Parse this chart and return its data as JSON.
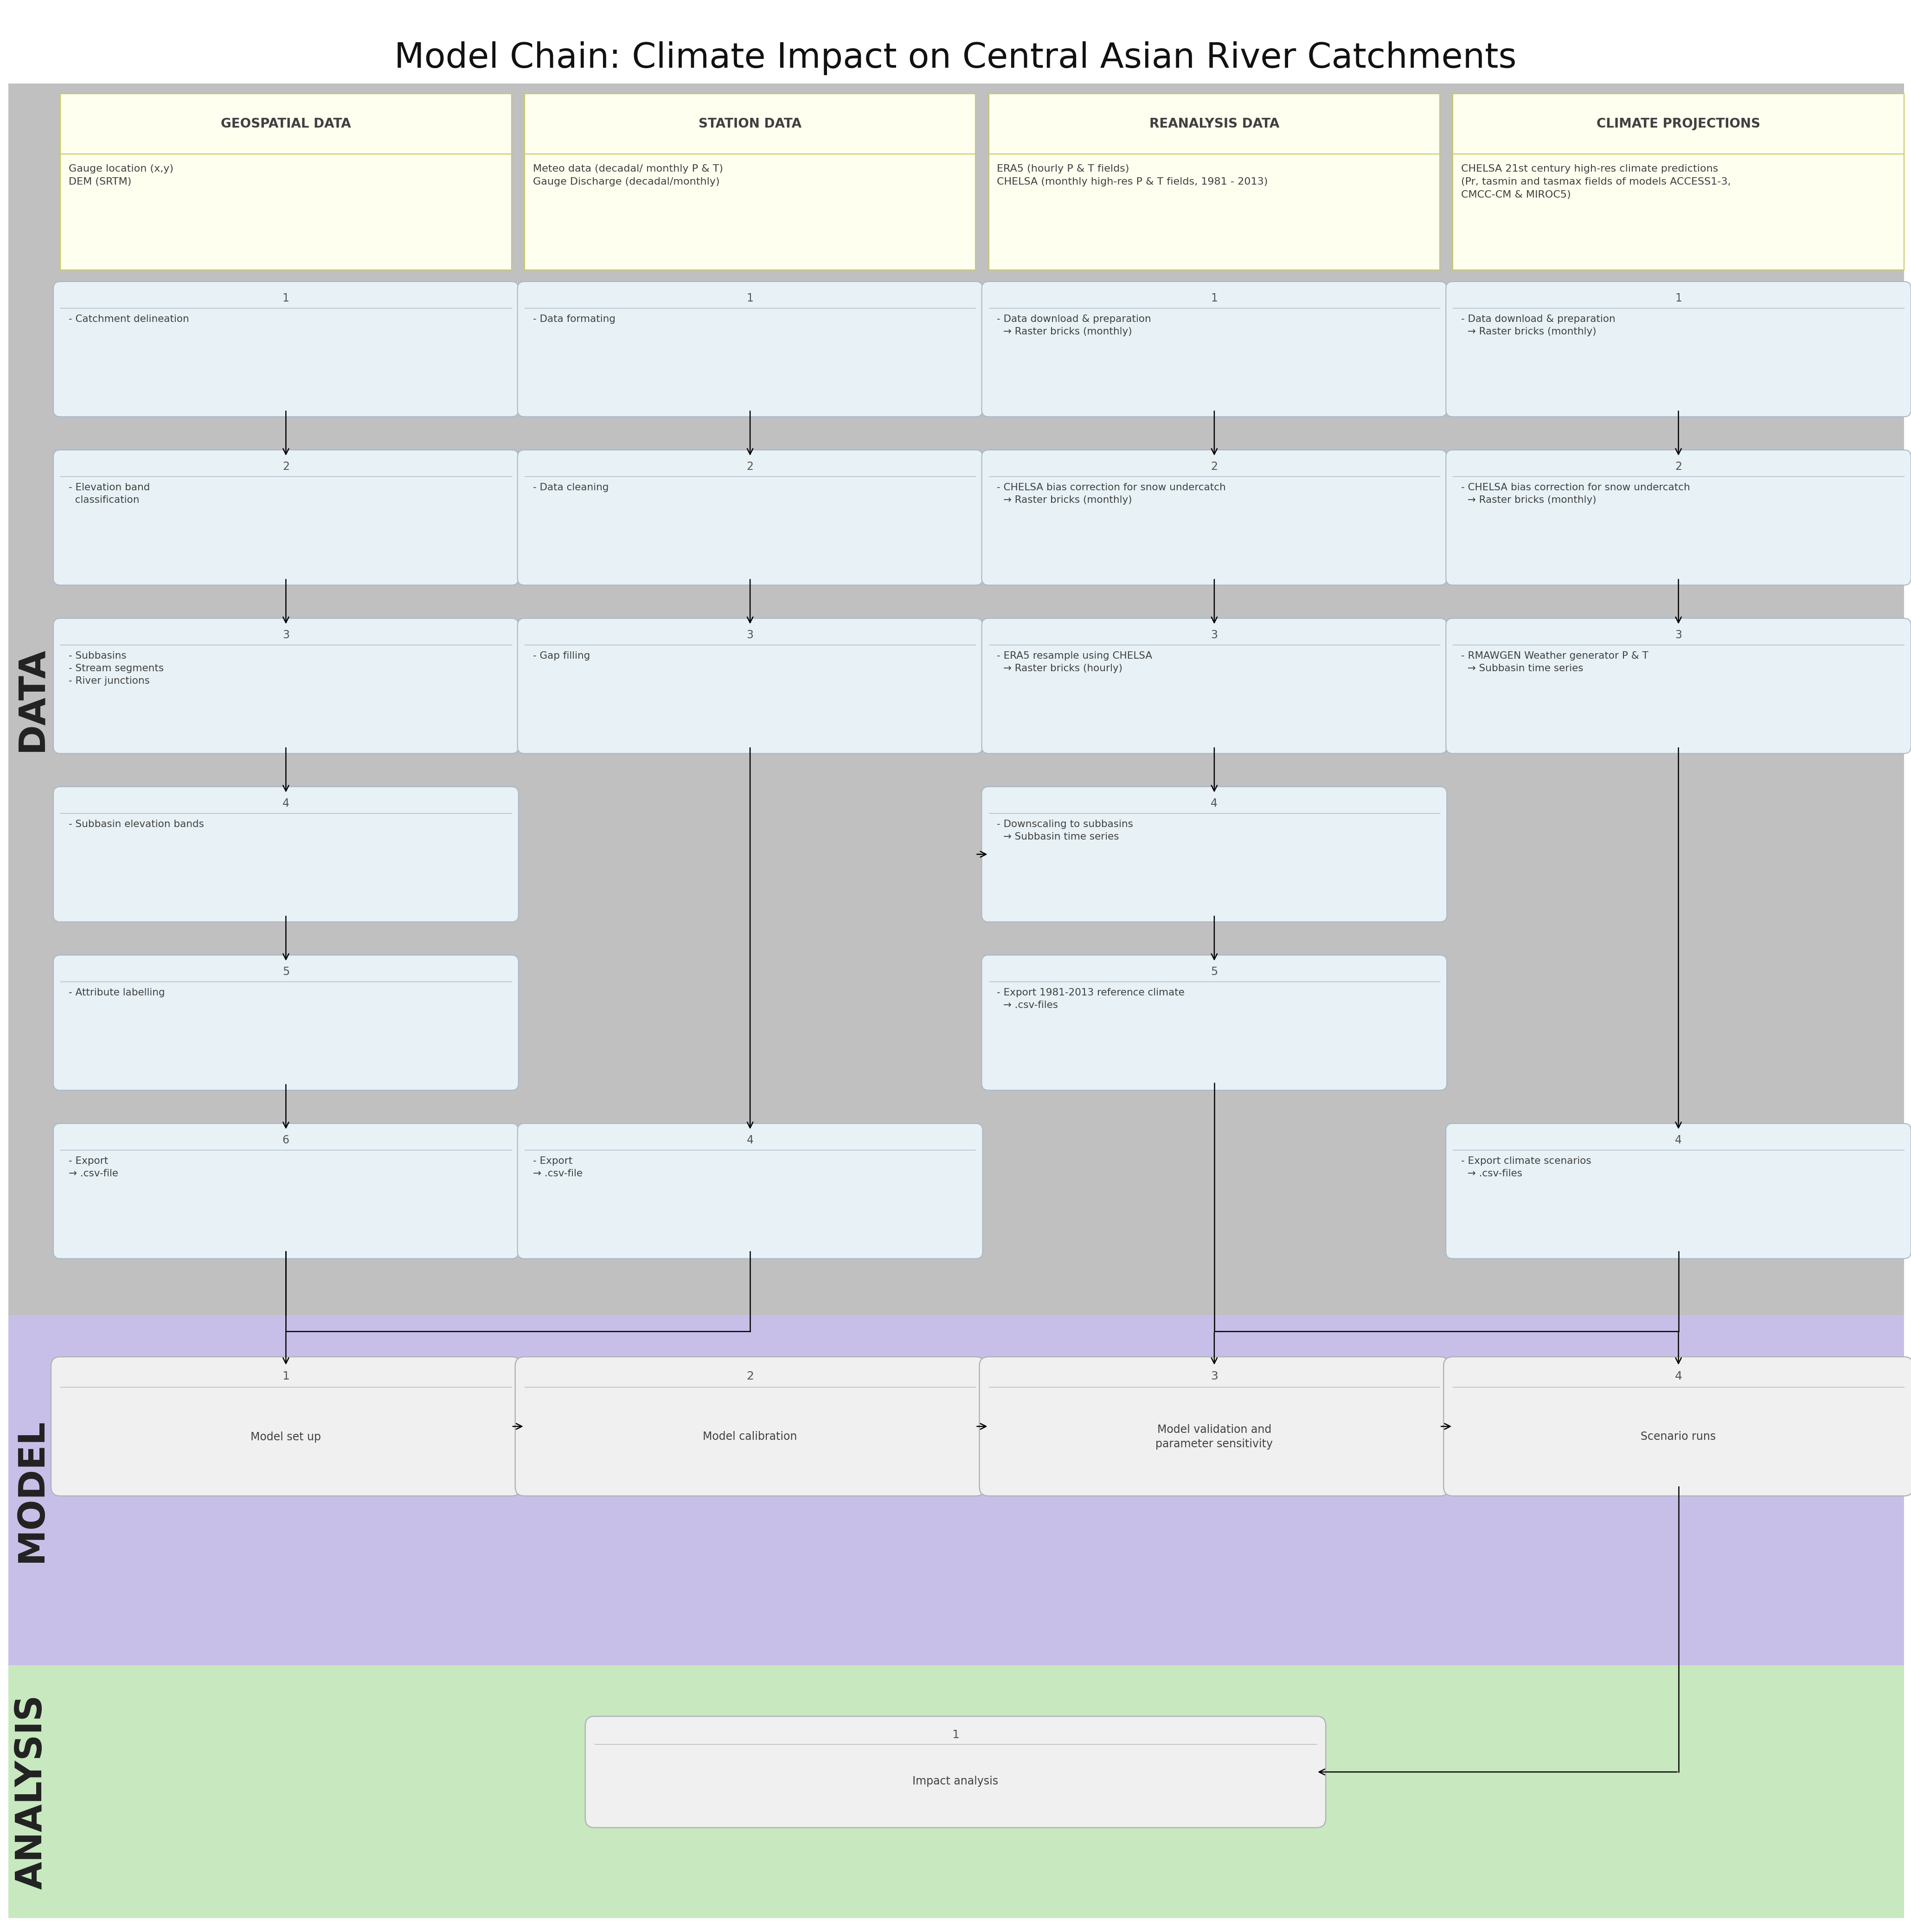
{
  "title": "Model Chain: Climate Impact on Central Asian River Catchments",
  "bg_color": "#ffffff",
  "data_section_color": "#c0c0c0",
  "model_section_color": "#c8bfe8",
  "analysis_section_color": "#c8e8c0",
  "yellow_box_color": "#fffff0",
  "yellow_box_edge": "#c8c860",
  "step_box_color": "#e8f2f6",
  "step_box_edge": "#a8b8c8",
  "model_box_color": "#f0f0f0",
  "model_box_edge": "#b0b4b8",
  "analysis_box_color": "#f0f0f0",
  "analysis_box_edge": "#b0b4b8",
  "columns": {
    "geospatial": {
      "title": "GEOSPATIAL DATA",
      "subtitle": "Gauge location (x,y)\nDEM (SRTM)",
      "steps": [
        {
          "num": "1",
          "text": "- Catchment delineation"
        },
        {
          "num": "2",
          "text": "- Elevation band\n  classification"
        },
        {
          "num": "3",
          "text": "- Subbasins\n- Stream segments\n- River junctions"
        },
        {
          "num": "4",
          "text": "- Subbasin elevation bands"
        },
        {
          "num": "5",
          "text": "- Attribute labelling"
        },
        {
          "num": "6",
          "text": "- Export\n→ .csv-file"
        }
      ]
    },
    "station": {
      "title": "STATION DATA",
      "subtitle": "Meteo data (decadal/ monthly P & T)\nGauge Discharge (decadal/monthly)",
      "steps": [
        {
          "num": "1",
          "text": "- Data formating"
        },
        {
          "num": "2",
          "text": "- Data cleaning"
        },
        {
          "num": "3",
          "text": "- Gap filling"
        },
        {
          "num": "4",
          "text": "- Export\n→ .csv-file"
        }
      ]
    },
    "reanalysis": {
      "title": "REANALYSIS DATA",
      "subtitle": "ERA5 (hourly P & T fields)\nCHELSA (monthly high-res P & T fields, 1981 - 2013)",
      "steps": [
        {
          "num": "1",
          "text": "- Data download & preparation\n  → Raster bricks (monthly)"
        },
        {
          "num": "2",
          "text": "- CHELSA bias correction for snow undercatch\n  → Raster bricks (monthly)"
        },
        {
          "num": "3",
          "text": "- ERA5 resample using CHELSA\n  → Raster bricks (hourly)"
        },
        {
          "num": "4",
          "text": "- Downscaling to subbasins\n  → Subbasin time series"
        },
        {
          "num": "5",
          "text": "- Export 1981-2013 reference climate\n  → .csv-files"
        }
      ]
    },
    "climate": {
      "title": "CLIMATE PROJECTIONS",
      "subtitle": "CHELSA 21st century high-res climate predictions\n(Pr, tasmin and tasmax fields of models ACCESS1-3,\nCMCC-CM & MIROC5)",
      "steps": [
        {
          "num": "1",
          "text": "- Data download & preparation\n  → Raster bricks (monthly)"
        },
        {
          "num": "2",
          "text": "- CHELSA bias correction for snow undercatch\n  → Raster bricks (monthly)"
        },
        {
          "num": "3",
          "text": "- RMAWGEN Weather generator P & T\n  → Subbasin time series"
        },
        {
          "num": "4",
          "text": "- Export climate scenarios\n  → .csv-files"
        }
      ]
    }
  },
  "model_steps": [
    {
      "num": "1",
      "text": "Model set up"
    },
    {
      "num": "2",
      "text": "Model calibration"
    },
    {
      "num": "3",
      "text": "Model validation and\nparameter sensitivity"
    },
    {
      "num": "4",
      "text": "Scenario runs"
    }
  ],
  "analysis_step": {
    "num": "1",
    "text": "Impact analysis"
  },
  "section_labels": [
    "DATA",
    "MODEL",
    "ANALYSIS"
  ],
  "col_keys": [
    "geospatial",
    "station",
    "reanalysis",
    "climate"
  ]
}
